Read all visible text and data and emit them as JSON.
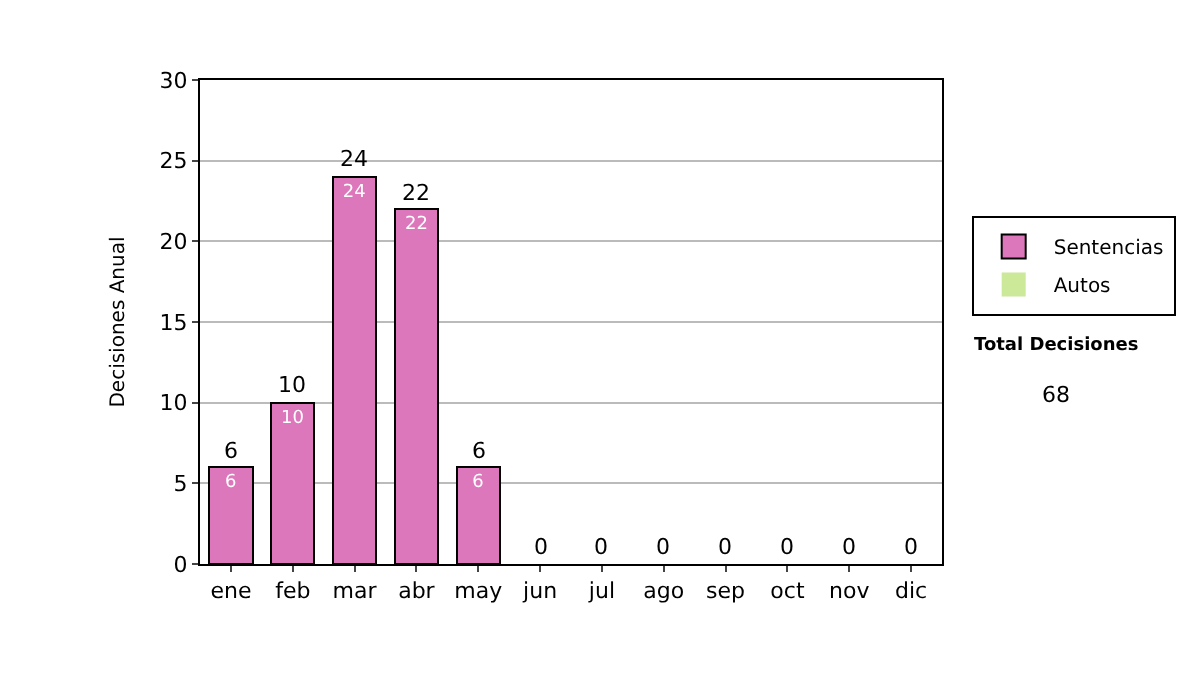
{
  "chart_data": {
    "type": "bar",
    "stacked": true,
    "ylabel": "Decisiones Anual",
    "categories": [
      "ene",
      "feb",
      "mar",
      "abr",
      "may",
      "jun",
      "jul",
      "ago",
      "sep",
      "oct",
      "nov",
      "dic"
    ],
    "series": [
      {
        "name": "Sentencias",
        "color": "#dd77bb",
        "values": [
          6,
          10,
          24,
          22,
          6,
          0,
          0,
          0,
          0,
          0,
          0,
          0
        ],
        "value_labels": [
          "6",
          "10",
          "24",
          "22",
          "6",
          null,
          null,
          null,
          null,
          null,
          null,
          null
        ]
      },
      {
        "name": "Autos",
        "color": "#cce899",
        "values": [
          0,
          0,
          0,
          0,
          0,
          0,
          0,
          0,
          0,
          0,
          0,
          0
        ]
      }
    ],
    "totals": [
      "6",
      "10",
      "24",
      "22",
      "6",
      "0",
      "0",
      "0",
      "0",
      "0",
      "0",
      "0"
    ],
    "ylim": [
      0,
      30
    ],
    "yticks": [
      0,
      5,
      10,
      15,
      20,
      25,
      30
    ],
    "grid": "y",
    "legend": "right",
    "annotations": [
      "Total Decisiones",
      "68"
    ]
  }
}
